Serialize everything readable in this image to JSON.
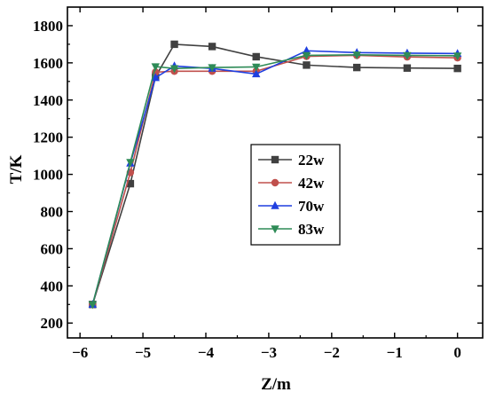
{
  "chart_data": {
    "type": "line",
    "title": "",
    "xlabel": "Z/m",
    "ylabel": "T/K",
    "xlim": [
      -6.2,
      0.4
    ],
    "ylim": [
      120,
      1900
    ],
    "xticks": [
      -6,
      -5,
      -4,
      -3,
      -2,
      -1,
      0
    ],
    "xtick_labels": [
      "−6",
      "−5",
      "−4",
      "−3",
      "−2",
      "−1",
      "0"
    ],
    "yticks": [
      200,
      400,
      600,
      800,
      1000,
      1200,
      1400,
      1600,
      1800
    ],
    "ytick_labels": [
      "200",
      "400",
      "600",
      "800",
      "1000",
      "1200",
      "1400",
      "1600",
      "1800"
    ],
    "grid": false,
    "legend_position": "center-right",
    "series": [
      {
        "name": "22w",
        "color": "#404040",
        "marker": "square",
        "x": [
          -5.8,
          -5.2,
          -4.8,
          -4.5,
          -3.9,
          -3.2,
          -2.4,
          -1.6,
          -0.8,
          0.0
        ],
        "y": [
          300,
          950,
          1525,
          1700,
          1688,
          1633,
          1588,
          1575,
          1572,
          1570
        ]
      },
      {
        "name": "42w",
        "color": "#c0504d",
        "marker": "circle",
        "x": [
          -5.8,
          -5.2,
          -4.8,
          -4.5,
          -3.9,
          -3.2,
          -2.4,
          -1.6,
          -0.8,
          0.0
        ],
        "y": [
          300,
          1010,
          1550,
          1555,
          1555,
          1555,
          1635,
          1640,
          1632,
          1627
        ]
      },
      {
        "name": "70w",
        "color": "#1f3fe0",
        "marker": "triangle-up",
        "x": [
          -5.8,
          -5.2,
          -4.8,
          -4.5,
          -3.9,
          -3.2,
          -2.4,
          -1.6,
          -0.8,
          0.0
        ],
        "y": [
          300,
          1060,
          1520,
          1583,
          1570,
          1540,
          1665,
          1655,
          1652,
          1650
        ]
      },
      {
        "name": "83w",
        "color": "#2e8b57",
        "marker": "triangle-down",
        "x": [
          -5.8,
          -5.2,
          -4.8,
          -4.5,
          -3.9,
          -3.2,
          -2.4,
          -1.6,
          -0.8,
          0.0
        ],
        "y": [
          300,
          1065,
          1580,
          1570,
          1575,
          1578,
          1640,
          1643,
          1640,
          1638
        ]
      }
    ]
  }
}
